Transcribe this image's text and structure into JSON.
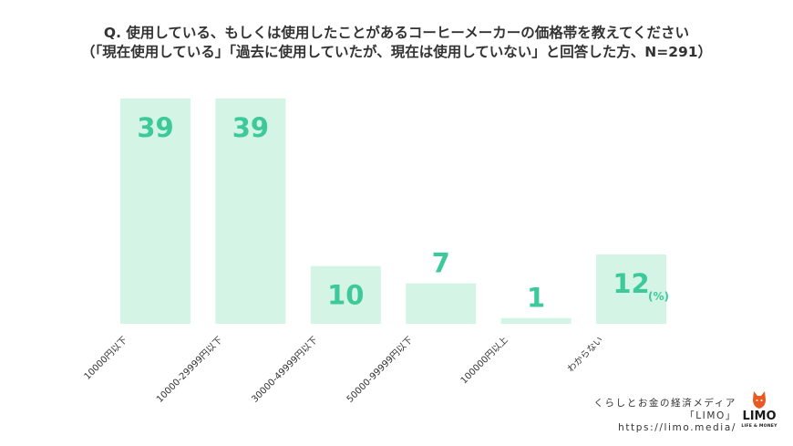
{
  "header": {
    "line1": "Q. 使用している、もしくは使用したことがあるコーヒーメーカーの価格帯を教えてください",
    "line2": "（「現在使用している」「過去に使用していたが、現在は使用していない」と回答した方、N=291）"
  },
  "chart_data": {
    "type": "bar",
    "categories": [
      "10000円以下",
      "10000-29999円以下",
      "30000-49999円以下",
      "50000-99999円以下",
      "100000円以上",
      "わからない"
    ],
    "values": [
      39,
      39,
      10,
      7,
      1,
      12
    ],
    "unit": "(%)",
    "ylim": [
      0,
      39
    ],
    "grid": false,
    "bar_color": "#d4f5e5",
    "label_color": "#3ec99a"
  },
  "credit": {
    "line1": "くらしとお金の経済メディア",
    "line2": "「LIMO」",
    "line3": "https://limo.media/"
  },
  "logo": {
    "word": "LIMO",
    "sub": "LIFE & MONEY",
    "mark_color": "#e85a24"
  }
}
